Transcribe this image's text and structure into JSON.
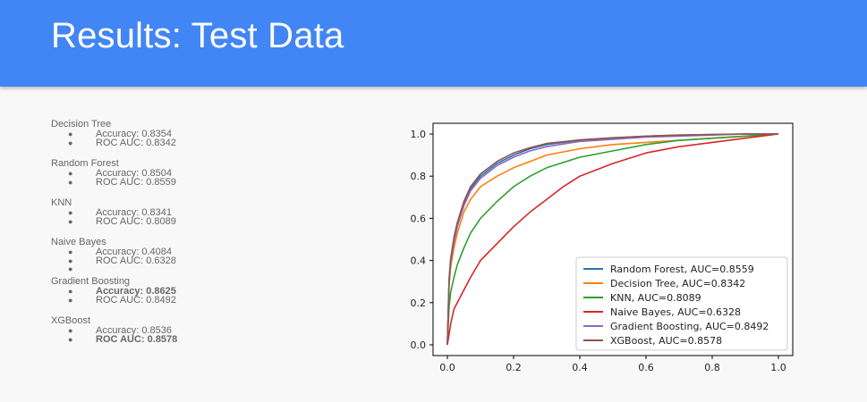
{
  "header": {
    "title": "Results: Test Data",
    "background": "#4285f4"
  },
  "models": [
    {
      "name": "Decision Tree",
      "metrics": [
        {
          "label": "Accuracy: 0.8354",
          "bold": false
        },
        {
          "label": "ROC AUC: 0.8342",
          "bold": false
        }
      ]
    },
    {
      "name": "Random Forest",
      "metrics": [
        {
          "label": "Accuracy: 0.8504",
          "bold": false
        },
        {
          "label": "ROC AUC: 0.8559",
          "bold": false
        }
      ]
    },
    {
      "name": "KNN",
      "metrics": [
        {
          "label": "Accuracy: 0.8341",
          "bold": false
        },
        {
          "label": "ROC AUC: 0.8089",
          "bold": false
        }
      ]
    },
    {
      "name": "Naive Bayes",
      "metrics": [
        {
          "label": "Accuracy: 0.4084",
          "bold": false
        },
        {
          "label": "ROC AUC: 0.6328",
          "bold": false
        },
        {
          "label": "",
          "bold": false
        }
      ]
    },
    {
      "name": "Gradient Boosting",
      "metrics": [
        {
          "label": "Accuracy: 0.8625",
          "bold": true
        },
        {
          "label": "ROC AUC: 0.8492",
          "bold": false
        }
      ]
    },
    {
      "name": "XGBoost",
      "metrics": [
        {
          "label": "Accuracy: 0.8536",
          "bold": false
        },
        {
          "label": "ROC AUC: 0.8578",
          "bold": true
        }
      ]
    }
  ],
  "chart_data": {
    "type": "line",
    "xlim": [
      0,
      1.0
    ],
    "ylim": [
      0,
      1.0
    ],
    "xticks": [
      "0.0",
      "0.2",
      "0.4",
      "0.6",
      "0.8",
      "1.0"
    ],
    "yticks": [
      "0.0",
      "0.2",
      "0.4",
      "0.6",
      "0.8",
      "1.0"
    ],
    "legend_position": "bottom-right",
    "grid": false,
    "series": [
      {
        "name": "Random Forest, AUC=0.8559",
        "color": "#1f77b4",
        "x": [
          0,
          0.005,
          0.01,
          0.02,
          0.03,
          0.05,
          0.07,
          0.1,
          0.15,
          0.2,
          0.25,
          0.3,
          0.4,
          0.5,
          0.6,
          0.7,
          0.8,
          0.9,
          1.0
        ],
        "y": [
          0,
          0.3,
          0.4,
          0.5,
          0.57,
          0.67,
          0.74,
          0.8,
          0.86,
          0.9,
          0.93,
          0.95,
          0.97,
          0.98,
          0.99,
          0.995,
          0.998,
          1.0,
          1.0
        ]
      },
      {
        "name": "Decision Tree, AUC=0.8342",
        "color": "#ff7f0e",
        "x": [
          0,
          0.005,
          0.01,
          0.02,
          0.03,
          0.05,
          0.07,
          0.1,
          0.15,
          0.2,
          0.25,
          0.3,
          0.4,
          0.5,
          0.6,
          0.7,
          0.8,
          0.9,
          1.0
        ],
        "y": [
          0,
          0.28,
          0.37,
          0.46,
          0.53,
          0.63,
          0.69,
          0.75,
          0.8,
          0.84,
          0.87,
          0.9,
          0.93,
          0.95,
          0.96,
          0.97,
          0.98,
          0.99,
          1.0
        ]
      },
      {
        "name": "KNN, AUC=0.8089",
        "color": "#2ca02c",
        "x": [
          0,
          0.005,
          0.01,
          0.02,
          0.03,
          0.05,
          0.07,
          0.1,
          0.15,
          0.2,
          0.25,
          0.3,
          0.4,
          0.5,
          0.6,
          0.7,
          0.8,
          0.9,
          1.0
        ],
        "y": [
          0,
          0.18,
          0.25,
          0.32,
          0.38,
          0.46,
          0.53,
          0.6,
          0.68,
          0.75,
          0.8,
          0.84,
          0.89,
          0.92,
          0.95,
          0.97,
          0.98,
          0.99,
          1.0
        ]
      },
      {
        "name": "Naive Bayes, AUC=0.6328",
        "color": "#d62728",
        "x": [
          0,
          0.005,
          0.01,
          0.02,
          0.03,
          0.05,
          0.07,
          0.1,
          0.15,
          0.2,
          0.25,
          0.3,
          0.35,
          0.4,
          0.5,
          0.6,
          0.7,
          0.8,
          0.9,
          1.0
        ],
        "y": [
          0,
          0.05,
          0.1,
          0.17,
          0.2,
          0.26,
          0.32,
          0.4,
          0.48,
          0.56,
          0.63,
          0.69,
          0.75,
          0.8,
          0.86,
          0.91,
          0.94,
          0.96,
          0.98,
          1.0
        ]
      },
      {
        "name": "Gradient Boosting, AUC=0.8492",
        "color": "#9467bd",
        "x": [
          0,
          0.005,
          0.01,
          0.02,
          0.03,
          0.05,
          0.07,
          0.1,
          0.15,
          0.2,
          0.25,
          0.3,
          0.4,
          0.5,
          0.6,
          0.7,
          0.8,
          0.9,
          1.0
        ],
        "y": [
          0,
          0.29,
          0.39,
          0.49,
          0.56,
          0.66,
          0.73,
          0.79,
          0.85,
          0.89,
          0.92,
          0.94,
          0.965,
          0.975,
          0.985,
          0.99,
          0.995,
          1.0,
          1.0
        ]
      },
      {
        "name": "XGBoost, AUC=0.8578",
        "color": "#8c564b",
        "x": [
          0,
          0.005,
          0.01,
          0.02,
          0.03,
          0.05,
          0.07,
          0.1,
          0.15,
          0.2,
          0.25,
          0.3,
          0.4,
          0.5,
          0.6,
          0.7,
          0.8,
          0.9,
          1.0
        ],
        "y": [
          0,
          0.31,
          0.41,
          0.51,
          0.58,
          0.68,
          0.75,
          0.81,
          0.87,
          0.91,
          0.935,
          0.955,
          0.972,
          0.982,
          0.99,
          0.995,
          0.998,
          1.0,
          1.0
        ]
      }
    ]
  }
}
